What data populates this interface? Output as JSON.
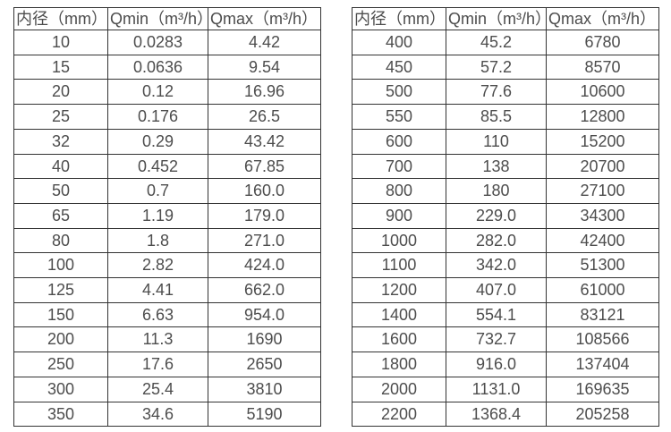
{
  "colors": {
    "background": "#ffffff",
    "border": "#333333",
    "text": "#4d4d4d"
  },
  "tables": [
    {
      "name": "small-diameter-flow-range",
      "headers": [
        "内径（mm）",
        "Qmin（m³/h）",
        "Qmax（m³/h）"
      ],
      "rows": [
        [
          "10",
          "0.0283",
          "4.42"
        ],
        [
          "15",
          "0.0636",
          "9.54"
        ],
        [
          "20",
          "0.12",
          "16.96"
        ],
        [
          "25",
          "0.176",
          "26.5"
        ],
        [
          "32",
          "0.29",
          "43.42"
        ],
        [
          "40",
          "0.452",
          "67.85"
        ],
        [
          "50",
          "0.7",
          "160.0"
        ],
        [
          "65",
          "1.19",
          "179.0"
        ],
        [
          "80",
          "1.8",
          "271.0"
        ],
        [
          "100",
          "2.82",
          "424.0"
        ],
        [
          "125",
          "4.41",
          "662.0"
        ],
        [
          "150",
          "6.63",
          "954.0"
        ],
        [
          "200",
          "11.3",
          "1690"
        ],
        [
          "250",
          "17.6",
          "2650"
        ],
        [
          "300",
          "25.4",
          "3810"
        ],
        [
          "350",
          "34.6",
          "5190"
        ]
      ]
    },
    {
      "name": "large-diameter-flow-range",
      "headers": [
        "内径（mm）",
        "Qmin（m³/h）",
        "Qmax（m³/h）"
      ],
      "rows": [
        [
          "400",
          "45.2",
          "6780"
        ],
        [
          "450",
          "57.2",
          "8570"
        ],
        [
          "500",
          "77.6",
          "10600"
        ],
        [
          "550",
          "85.5",
          "12800"
        ],
        [
          "600",
          "110",
          "15200"
        ],
        [
          "700",
          "138",
          "20700"
        ],
        [
          "800",
          "180",
          "27100"
        ],
        [
          "900",
          "229.0",
          "34300"
        ],
        [
          "1000",
          "282.0",
          "42400"
        ],
        [
          "1100",
          "342.0",
          "51300"
        ],
        [
          "1200",
          "407.0",
          "61000"
        ],
        [
          "1400",
          "554.1",
          "83121"
        ],
        [
          "1600",
          "732.7",
          "108566"
        ],
        [
          "1800",
          "916.0",
          "137404"
        ],
        [
          "2000",
          "1131.0",
          "169635"
        ],
        [
          "2200",
          "1368.4",
          "205258"
        ]
      ]
    }
  ]
}
